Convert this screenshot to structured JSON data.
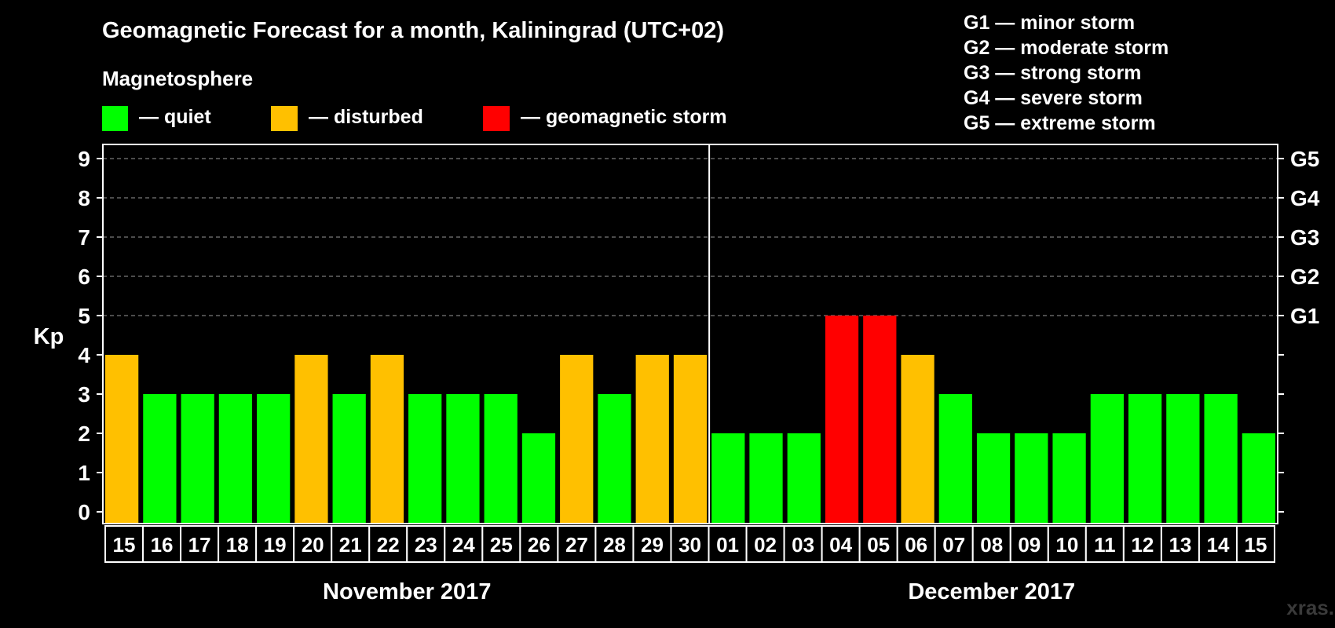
{
  "chart_data": {
    "type": "bar",
    "title": "Geomagnetic Forecast for a month, Kaliningrad (UTC+02)",
    "ylabel": "Kp",
    "ylim": [
      0,
      9
    ],
    "yticks": [
      0,
      1,
      2,
      3,
      4,
      5,
      6,
      7,
      8,
      9
    ],
    "grid_levels": [
      5,
      6,
      7,
      8,
      9
    ],
    "categories": [
      "15",
      "16",
      "17",
      "18",
      "19",
      "20",
      "21",
      "22",
      "23",
      "24",
      "25",
      "26",
      "27",
      "28",
      "29",
      "30",
      "01",
      "02",
      "03",
      "04",
      "05",
      "06",
      "07",
      "08",
      "09",
      "10",
      "11",
      "12",
      "13",
      "14",
      "15"
    ],
    "values": [
      4,
      3,
      3,
      3,
      3,
      4,
      3,
      4,
      3,
      3,
      3,
      2,
      4,
      3,
      4,
      4,
      2,
      2,
      2,
      5,
      5,
      4,
      3,
      2,
      2,
      2,
      3,
      3,
      3,
      3,
      2
    ],
    "status": [
      "disturbed",
      "quiet",
      "quiet",
      "quiet",
      "quiet",
      "disturbed",
      "quiet",
      "disturbed",
      "quiet",
      "quiet",
      "quiet",
      "quiet",
      "disturbed",
      "quiet",
      "disturbed",
      "disturbed",
      "quiet",
      "quiet",
      "quiet",
      "storm",
      "storm",
      "disturbed",
      "quiet",
      "quiet",
      "quiet",
      "quiet",
      "quiet",
      "quiet",
      "quiet",
      "quiet",
      "quiet"
    ],
    "months": [
      {
        "label": "November 2017",
        "count": 16
      },
      {
        "label": "December 2017",
        "count": 15
      }
    ],
    "right_axis": [
      {
        "kp": 5,
        "label": "G1"
      },
      {
        "kp": 6,
        "label": "G2"
      },
      {
        "kp": 7,
        "label": "G3"
      },
      {
        "kp": 8,
        "label": "G4"
      },
      {
        "kp": 9,
        "label": "G5"
      }
    ]
  },
  "legend": {
    "heading": "Magnetosphere",
    "items": [
      {
        "label": "— quiet",
        "color": "#00ff00"
      },
      {
        "label": "— disturbed",
        "color": "#ffc000"
      },
      {
        "label": "— geomagnetic storm",
        "color": "#ff0000"
      }
    ]
  },
  "storm_scale": [
    "G1 — minor storm",
    "G2 — moderate storm",
    "G3 — strong storm",
    "G4 — severe storm",
    "G5 — extreme storm"
  ],
  "colors": {
    "quiet": "#00ff00",
    "disturbed": "#ffc000",
    "storm": "#ff0000",
    "grid": "#999999",
    "axis": "#ffffff"
  },
  "watermark": "xras.ru"
}
